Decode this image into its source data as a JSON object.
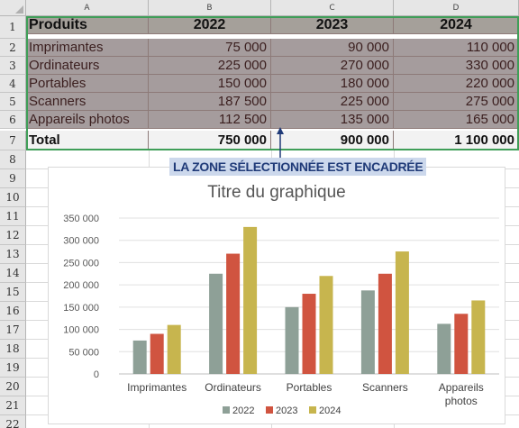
{
  "column_headers": [
    "A",
    "B",
    "C",
    "D"
  ],
  "row_numbers": [
    "1",
    "2",
    "3",
    "4",
    "5",
    "6",
    "7",
    "8",
    "9",
    "10",
    "11",
    "12",
    "13",
    "14",
    "15",
    "16",
    "17",
    "18",
    "19",
    "20",
    "21",
    "22"
  ],
  "table": {
    "header": [
      "Produits",
      "2022",
      "2023",
      "2024"
    ],
    "rows": [
      [
        "Imprimantes",
        "75 000",
        "90 000",
        "110 000"
      ],
      [
        "Ordinateurs",
        "225 000",
        "270 000",
        "330 000"
      ],
      [
        "Portables",
        "150 000",
        "180 000",
        "220 000"
      ],
      [
        "Scanners",
        "187 500",
        "225 000",
        "275 000"
      ],
      [
        "Appareils photos",
        "112 500",
        "135 000",
        "165 000"
      ]
    ],
    "total": [
      "Total",
      "750 000",
      "900 000",
      "1 100 000"
    ]
  },
  "annotation": "LA ZONE SÉLECTIONNÉE EST ENCADRÉE",
  "colors": {
    "selection_fill": "#a59c9d",
    "selection_border": "#3f9e58",
    "callout_bg": "#ccd8ec",
    "callout_text": "#1f3a78"
  },
  "chart_data": {
    "type": "bar",
    "title": "Titre du graphique",
    "categories": [
      "Imprimantes",
      "Ordinateurs",
      "Portables",
      "Scanners",
      "Appareils photos"
    ],
    "series": [
      {
        "name": "2022",
        "values": [
          75000,
          225000,
          150000,
          187500,
          112500
        ],
        "color": "#8ea097"
      },
      {
        "name": "2023",
        "values": [
          90000,
          270000,
          180000,
          225000,
          135000
        ],
        "color": "#d05440"
      },
      {
        "name": "2024",
        "values": [
          110000,
          330000,
          220000,
          275000,
          165000
        ],
        "color": "#c7b54e"
      }
    ],
    "ylim": [
      0,
      350000
    ],
    "yticks": [
      "0",
      "50 000",
      "100 000",
      "150 000",
      "200 000",
      "250 000",
      "300 000",
      "350 000"
    ],
    "grid": true,
    "legend": "bottom"
  }
}
